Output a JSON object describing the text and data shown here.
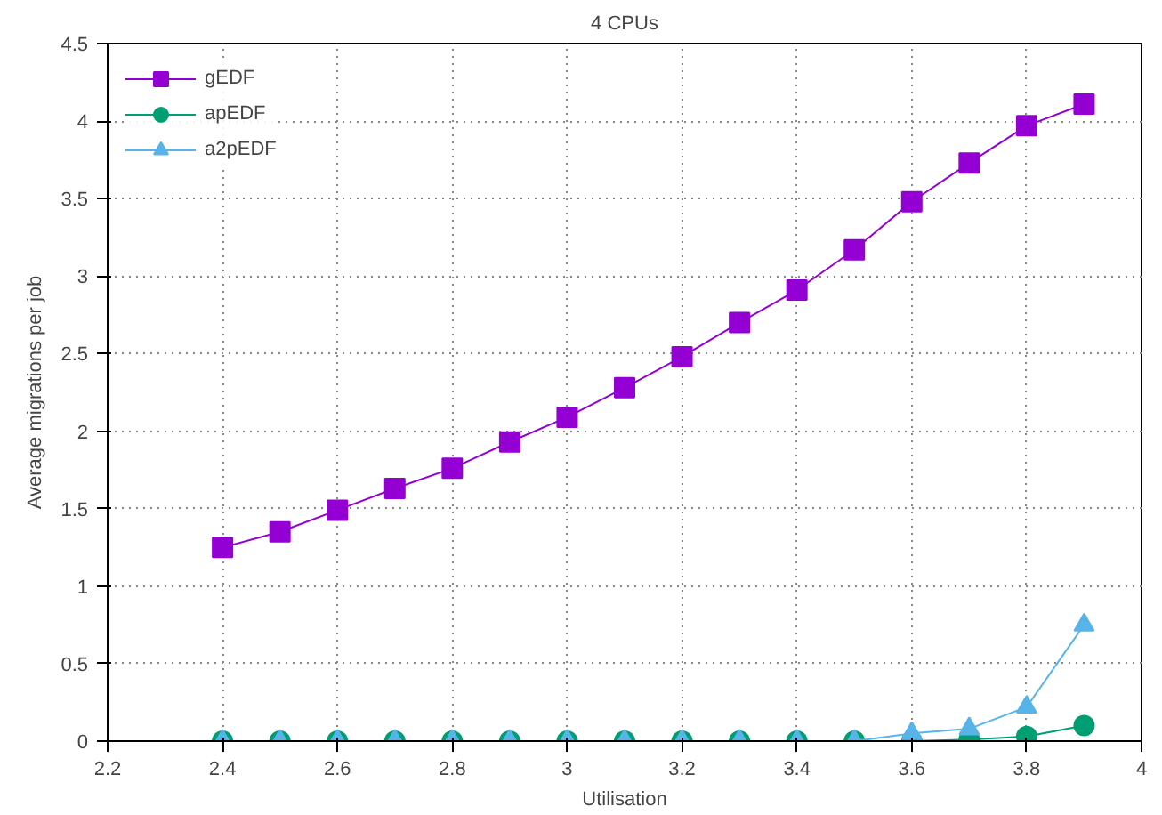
{
  "chart_data": {
    "type": "line",
    "title": "4 CPUs",
    "xlabel": "Utilisation",
    "ylabel": "Average migrations per job",
    "x": [
      2.4,
      2.5,
      2.6,
      2.7,
      2.8,
      2.9,
      3.0,
      3.1,
      3.2,
      3.3,
      3.4,
      3.5,
      3.6,
      3.7,
      3.8,
      3.9
    ],
    "series": [
      {
        "name": "gEDF",
        "color": "#9400d3",
        "marker": "square",
        "values": [
          1.25,
          1.35,
          1.49,
          1.63,
          1.76,
          1.93,
          2.09,
          2.28,
          2.48,
          2.7,
          2.91,
          3.17,
          3.48,
          3.73,
          3.97,
          4.11
        ]
      },
      {
        "name": "apEDF",
        "color": "#009e73",
        "marker": "circle",
        "values": [
          0,
          0,
          0,
          0,
          0,
          0,
          0,
          0,
          0,
          0,
          0,
          0,
          0,
          0.01,
          0.03,
          0.1
        ]
      },
      {
        "name": "a2pEDF",
        "color": "#56b4e9",
        "marker": "triangle",
        "values": [
          0,
          0,
          0,
          0,
          0,
          0,
          0,
          0,
          0,
          0,
          0,
          0,
          0.05,
          0.08,
          0.22,
          0.75
        ]
      }
    ],
    "xlim": [
      2.2,
      4
    ],
    "xticks": [
      2.2,
      2.4,
      2.6,
      2.8,
      3,
      3.2,
      3.4,
      3.6,
      3.8,
      4
    ],
    "ylim": [
      0,
      4.5
    ],
    "yticks": [
      0,
      0.5,
      1,
      1.5,
      2,
      2.5,
      3,
      3.5,
      4,
      4.5
    ],
    "grid": true,
    "legend": "top left",
    "line_style": "solid"
  }
}
